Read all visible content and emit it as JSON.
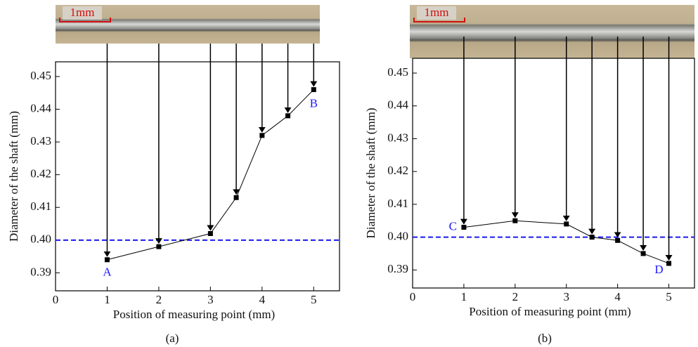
{
  "chart_data": [
    {
      "type": "line",
      "caption": "(a)",
      "scale_bar_label": "1mm",
      "x_label": "Position of measuring point (mm)",
      "y_label": "Diameter of the shaft (mm)",
      "x": [
        1,
        2,
        3,
        3.5,
        4,
        4.5,
        5
      ],
      "values": [
        0.394,
        0.398,
        0.402,
        0.413,
        0.432,
        0.438,
        0.446
      ],
      "color": "#000000",
      "annotations": [
        "A",
        "B"
      ],
      "annotation_color": "#1a1aff",
      "reference_line": {
        "value": 0.4,
        "color": "#1a1aee"
      },
      "xlim": [
        0,
        5.5
      ],
      "xticks": [
        0,
        1,
        2,
        3,
        4,
        5
      ],
      "ylim": [
        0.3845,
        0.4545
      ],
      "yticks": [
        0.39,
        {
          "value": 0.4,
          "label": "0.40"
        },
        0.41,
        0.42,
        0.43,
        0.44,
        0.45
      ]
    },
    {
      "type": "line",
      "caption": "(b)",
      "scale_bar_label": "1mm",
      "x_label": "Position of measuring point (mm)",
      "y_label": "Diameter of the shaft (mm)",
      "x": [
        1,
        2,
        3,
        3.5,
        4,
        4.5,
        5
      ],
      "values": [
        0.403,
        0.405,
        0.404,
        0.4,
        0.399,
        0.395,
        0.392
      ],
      "color": "#000000",
      "annotations": [
        "C",
        "D"
      ],
      "annotation_color": "#1a1aff",
      "reference_line": {
        "value": 0.4,
        "color": "#1a1aee"
      },
      "xlim": [
        0,
        5.5
      ],
      "xticks": [
        0,
        1,
        2,
        3,
        4,
        5
      ],
      "ylim": [
        0.3845,
        0.4545
      ],
      "yticks": [
        0.39,
        {
          "value": 0.4,
          "label": "0.40"
        },
        0.41,
        0.42,
        0.43,
        0.44,
        0.45
      ]
    }
  ]
}
